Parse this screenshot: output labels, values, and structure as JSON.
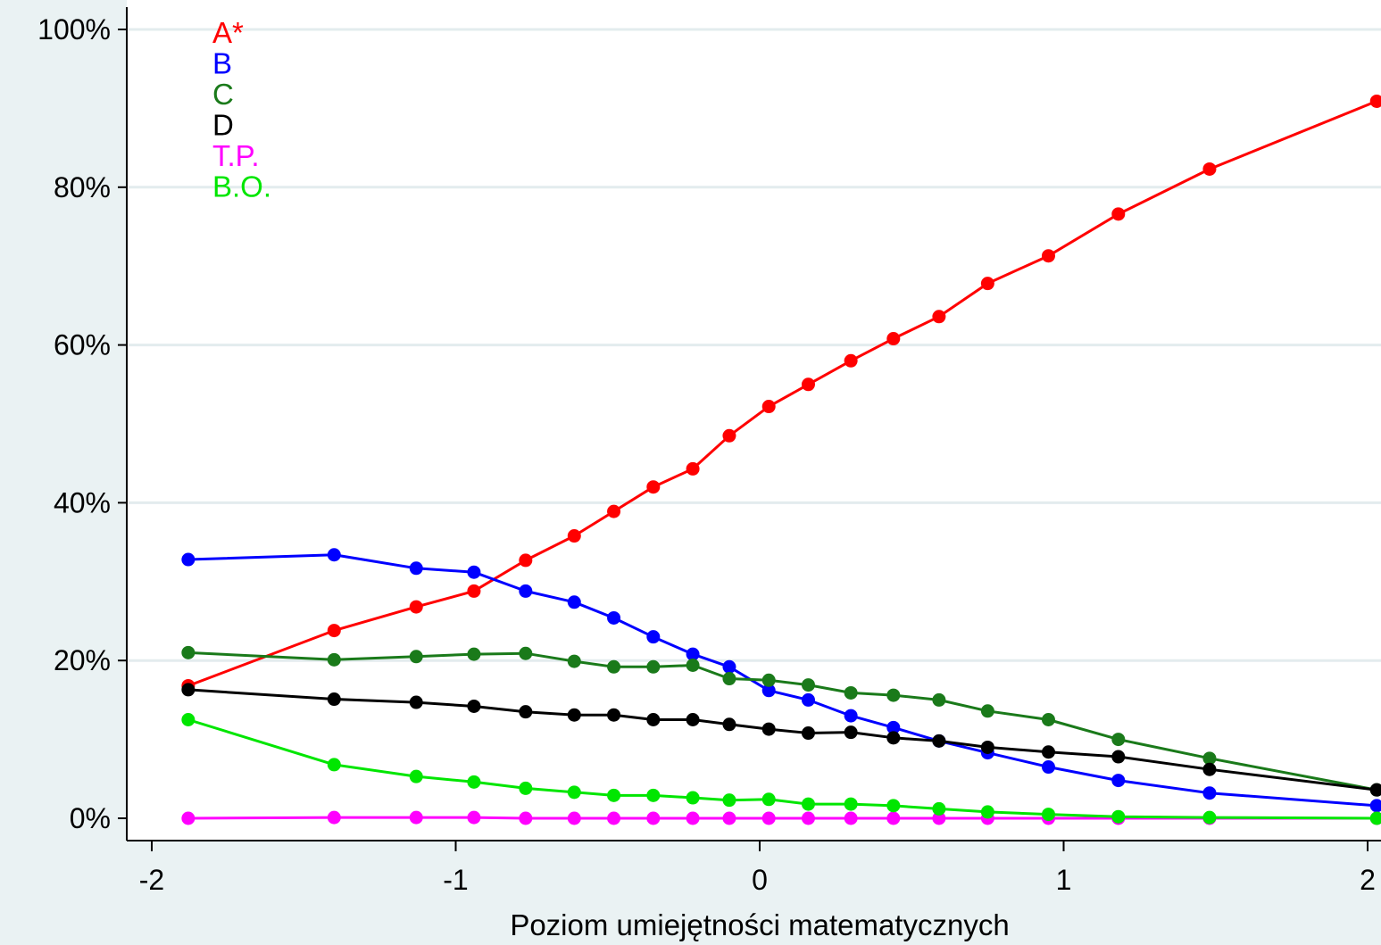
{
  "chart_data": {
    "type": "line",
    "title": "",
    "xlabel": "Poziom umiejętności matematycznych",
    "ylabel": "",
    "xlim": [
      -2.1,
      2.05
    ],
    "ylim": [
      0,
      100
    ],
    "x_ticks": [
      -2,
      -1,
      0,
      1,
      2
    ],
    "x_tick_labels": [
      "-2",
      "-1",
      "0",
      "1",
      "2"
    ],
    "y_ticks": [
      0,
      20,
      40,
      60,
      80,
      100
    ],
    "y_tick_labels": [
      "0%",
      "20%",
      "40%",
      "60%",
      "80%",
      "100%"
    ],
    "grid": true,
    "legend_position": "top-left",
    "x": [
      -1.88,
      -1.4,
      -1.13,
      -0.94,
      -0.77,
      -0.61,
      -0.48,
      -0.35,
      -0.22,
      -0.1,
      0.03,
      0.16,
      0.3,
      0.44,
      0.59,
      0.75,
      0.95,
      1.18,
      1.48,
      2.03
    ],
    "series": [
      {
        "name": "A*",
        "color": "#ff0000",
        "values": [
          16.8,
          23.8,
          26.8,
          28.8,
          32.7,
          35.8,
          38.9,
          42.0,
          44.3,
          48.5,
          52.2,
          55.0,
          58.0,
          60.8,
          63.6,
          67.8,
          71.3,
          76.6,
          82.3,
          90.9
        ]
      },
      {
        "name": "B",
        "color": "#0000ff",
        "values": [
          32.8,
          33.4,
          31.7,
          31.2,
          28.8,
          27.4,
          25.4,
          23.0,
          20.8,
          19.2,
          16.2,
          15.0,
          13.0,
          11.5,
          9.8,
          8.3,
          6.5,
          4.8,
          3.2,
          1.6
        ]
      },
      {
        "name": "C",
        "color": "#1a7a1a",
        "values": [
          21.0,
          20.1,
          20.5,
          20.8,
          20.9,
          19.9,
          19.2,
          19.2,
          19.4,
          17.7,
          17.5,
          16.9,
          15.9,
          15.6,
          15.0,
          13.6,
          12.5,
          10.0,
          7.6,
          3.6
        ]
      },
      {
        "name": "D",
        "color": "#000000",
        "values": [
          16.3,
          15.1,
          14.7,
          14.2,
          13.5,
          13.1,
          13.1,
          12.5,
          12.5,
          11.9,
          11.3,
          10.8,
          10.9,
          10.2,
          9.8,
          9.0,
          8.4,
          7.8,
          6.2,
          3.6
        ]
      },
      {
        "name": "T.P.",
        "color": "#ff00ff",
        "values": [
          0.0,
          0.1,
          0.1,
          0.1,
          0.0,
          0.0,
          0.0,
          0.0,
          0.0,
          0.0,
          0.0,
          0.0,
          0.0,
          0.0,
          0.0,
          0.0,
          0.0,
          0.0,
          0.0,
          0.0
        ]
      },
      {
        "name": "B.O.",
        "color": "#00e600",
        "values": [
          12.5,
          6.8,
          5.3,
          4.6,
          3.8,
          3.3,
          2.9,
          2.9,
          2.6,
          2.3,
          2.4,
          1.8,
          1.8,
          1.6,
          1.2,
          0.8,
          0.5,
          0.2,
          0.1,
          0.0
        ]
      }
    ]
  }
}
